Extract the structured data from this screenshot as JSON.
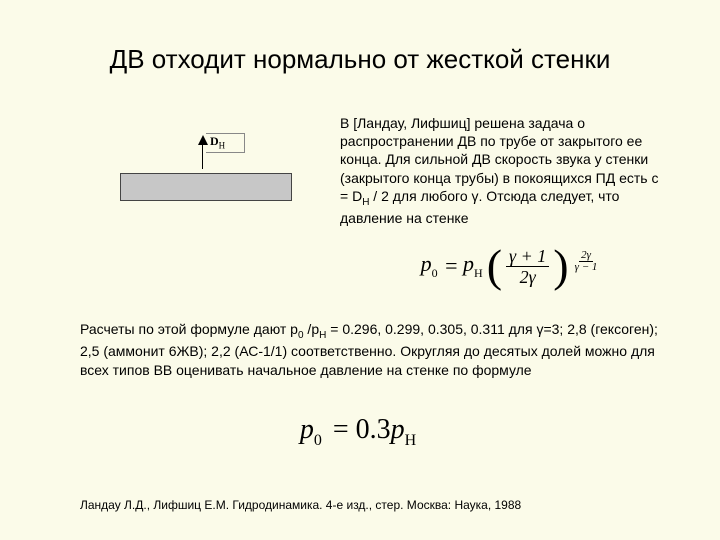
{
  "title": "ДВ отходит нормально от жесткой стенки",
  "diagram": {
    "label_html": "D<sub>H</sub>",
    "bar_color": "#c7c7c7"
  },
  "para1_html": "В [Ландау, Лифшиц] решена задача о распространении ДВ по трубе от закрытого ее конца. Для сильной ДВ скорость звука у стенки (закрытого конца трубы) в покоящихся ПД есть c = D<sub>H</sub> / 2 для любого γ. Отсюда следует, что давление на стенке",
  "equation1": {
    "lhs_html": "p<sub>0</sub>",
    "mid_html": "p<sub>H</sub>",
    "frac_num": "γ + 1",
    "frac_den": "2γ",
    "exp_num": "2γ",
    "exp_den": "γ − 1"
  },
  "para2_html": "Расчеты по этой формуле дают p<sub>0</sub> /p<sub>H</sub>  = 0.296, 0.299, 0.305, 0.311 для γ=3; 2,8 (гексоген); 2,5 (аммонит 6ЖВ); 2,2 (АС-1/1) соответственно. Округляя до десятых долей можно для всех типов ВВ оценивать начальное давление на стенке по формуле",
  "equation2": {
    "html": "p<sub>0</sub> <span class='up'>= 0.3</span>p<sub>H</sub>"
  },
  "footnote": "Ландау Л.Д., Лифшиц Е.М. Гидродинамика. 4-е изд., стер. Москва: Наука, 1988",
  "style": {
    "background_color": "#fbfbe9",
    "title_fontsize": 26,
    "body_fontsize": 14,
    "eq1_fontsize": 22,
    "eq2_fontsize": 28,
    "footnote_fontsize": 12,
    "font_family_body": "Arial",
    "font_family_math": "Times New Roman"
  },
  "calculated_values": {
    "gammas": [
      3,
      2.8,
      2.5,
      2.2
    ],
    "explosives": [
      "—",
      "гексоген",
      "аммонит 6ЖВ",
      "АС-1/1"
    ],
    "p0_over_pH": [
      0.296,
      0.299,
      0.305,
      0.311
    ],
    "approx": 0.3
  }
}
